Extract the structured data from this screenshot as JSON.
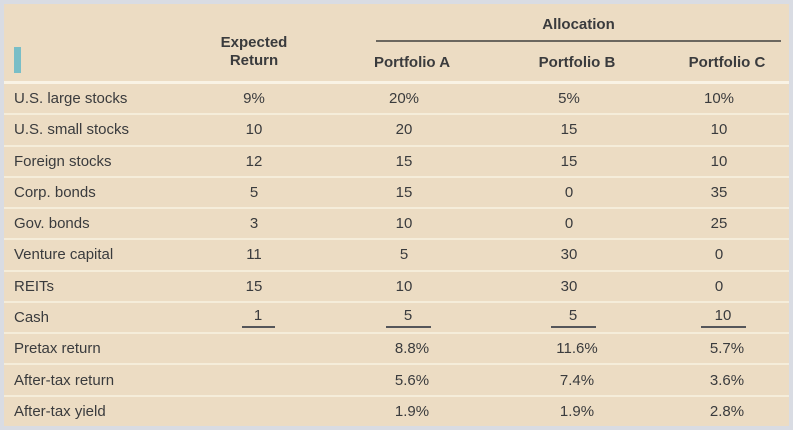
{
  "colors": {
    "card_background": "#ecdcc3",
    "card_border": "#d9dce3",
    "accent_teal_marker": "#79bec7",
    "dark_rule": "#6b675f",
    "sum_underline": "#55565a",
    "row_separator": "#f5edda",
    "text": "#3a3b3d"
  },
  "header": {
    "expected_return_lines": [
      "Expected",
      "Return"
    ],
    "allocation": "Allocation",
    "portfolios": [
      "Portfolio A",
      "Portfolio B",
      "Portfolio C"
    ]
  },
  "table": {
    "rows": [
      {
        "label": "U.S. large stocks",
        "expected": "9%",
        "a": "20%",
        "b": "5%",
        "c": "10%"
      },
      {
        "label": "U.S. small stocks",
        "expected": "10",
        "a": "20",
        "b": "15",
        "c": "10"
      },
      {
        "label": "Foreign stocks",
        "expected": "12",
        "a": "15",
        "b": "15",
        "c": "10"
      },
      {
        "label": "Corp. bonds",
        "expected": "5",
        "a": "15",
        "b": "0",
        "c": "35"
      },
      {
        "label": "Gov. bonds",
        "expected": "3",
        "a": "10",
        "b": "0",
        "c": "25"
      },
      {
        "label": "Venture capital",
        "expected": "11",
        "a": "5",
        "b": "30",
        "c": "0"
      },
      {
        "label": "REITs",
        "expected": "15",
        "a": "10",
        "b": "30",
        "c": "0"
      },
      {
        "label": "Cash",
        "expected": "1",
        "a": "5",
        "b": "5",
        "c": "10",
        "sum": true
      },
      {
        "label": "Pretax return",
        "expected": "",
        "a": "8.8%",
        "b": "11.6%",
        "c": "5.7%",
        "total": true
      },
      {
        "label": "After-tax return",
        "expected": "",
        "a": "5.6%",
        "b": "7.4%",
        "c": "3.6%",
        "total": true
      },
      {
        "label": "After-tax yield",
        "expected": "",
        "a": "1.9%",
        "b": "1.9%",
        "c": "2.8%",
        "total": true
      }
    ]
  }
}
